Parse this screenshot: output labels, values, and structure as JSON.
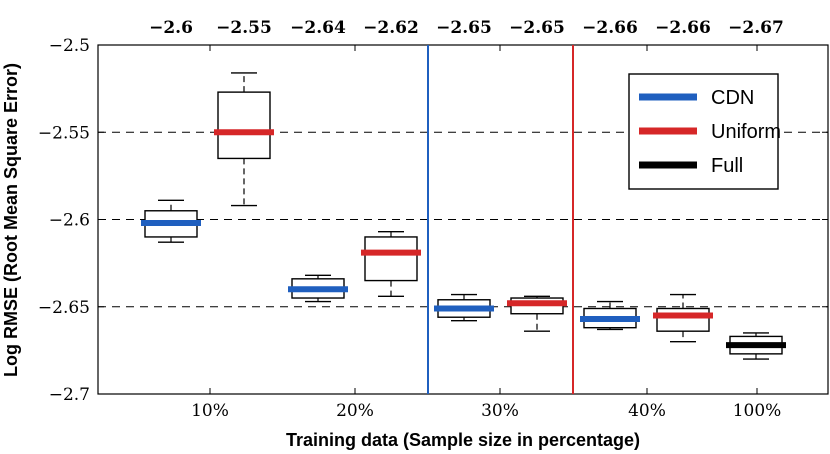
{
  "chart_data": {
    "type": "box",
    "xlabel": "Training data (Sample size in percentage)",
    "ylabel": "Log RMSE (Root Mean Square Error)",
    "ylim": [
      -2.7,
      -2.5
    ],
    "yticks": [
      -2.5,
      -2.55,
      -2.6,
      -2.65,
      -2.7
    ],
    "ytick_labels": [
      "−2.5",
      "−2.55",
      "−2.6",
      "−2.65",
      "−2.7"
    ],
    "categories": [
      "10%",
      "20%",
      "30%",
      "40%",
      "100%"
    ],
    "top_labels": [
      "−2.6",
      "−2.55",
      "−2.64",
      "−2.62",
      "−2.65",
      "−2.65",
      "−2.66",
      "−2.66",
      "−2.67"
    ],
    "grid": "dashed horizontal at y ticks",
    "legend_position": "top-right",
    "series": [
      {
        "name": "CDN",
        "color": "#1f5fbf",
        "boxes": [
          {
            "category": "10%",
            "whisker_low": -2.613,
            "q1": -2.61,
            "median": -2.602,
            "q3": -2.595,
            "whisker_high": -2.589
          },
          {
            "category": "20%",
            "whisker_low": -2.647,
            "q1": -2.645,
            "median": -2.64,
            "q3": -2.634,
            "whisker_high": -2.632
          },
          {
            "category": "30%",
            "whisker_low": -2.658,
            "q1": -2.656,
            "median": -2.651,
            "q3": -2.646,
            "whisker_high": -2.643
          },
          {
            "category": "40%",
            "whisker_low": -2.663,
            "q1": -2.662,
            "median": -2.657,
            "q3": -2.651,
            "whisker_high": -2.647
          }
        ]
      },
      {
        "name": "Uniform",
        "color": "#d62728",
        "boxes": [
          {
            "category": "10%",
            "whisker_low": -2.592,
            "q1": -2.565,
            "median": -2.55,
            "q3": -2.527,
            "whisker_high": -2.516
          },
          {
            "category": "20%",
            "whisker_low": -2.644,
            "q1": -2.635,
            "median": -2.619,
            "q3": -2.61,
            "whisker_high": -2.607
          },
          {
            "category": "30%",
            "whisker_low": -2.664,
            "q1": -2.654,
            "median": -2.648,
            "q3": -2.645,
            "whisker_high": -2.644
          },
          {
            "category": "40%",
            "whisker_low": -2.67,
            "q1": -2.664,
            "median": -2.655,
            "q3": -2.651,
            "whisker_high": -2.643
          }
        ]
      },
      {
        "name": "Full",
        "color": "#000000",
        "boxes": [
          {
            "category": "100%",
            "whisker_low": -2.68,
            "q1": -2.677,
            "median": -2.672,
            "q3": -2.667,
            "whisker_high": -2.665
          }
        ]
      }
    ],
    "vertical_lines": [
      {
        "after_category": "20%",
        "color": "#1f5fbf"
      },
      {
        "after_category": "30%",
        "color": "#d62728"
      }
    ]
  }
}
